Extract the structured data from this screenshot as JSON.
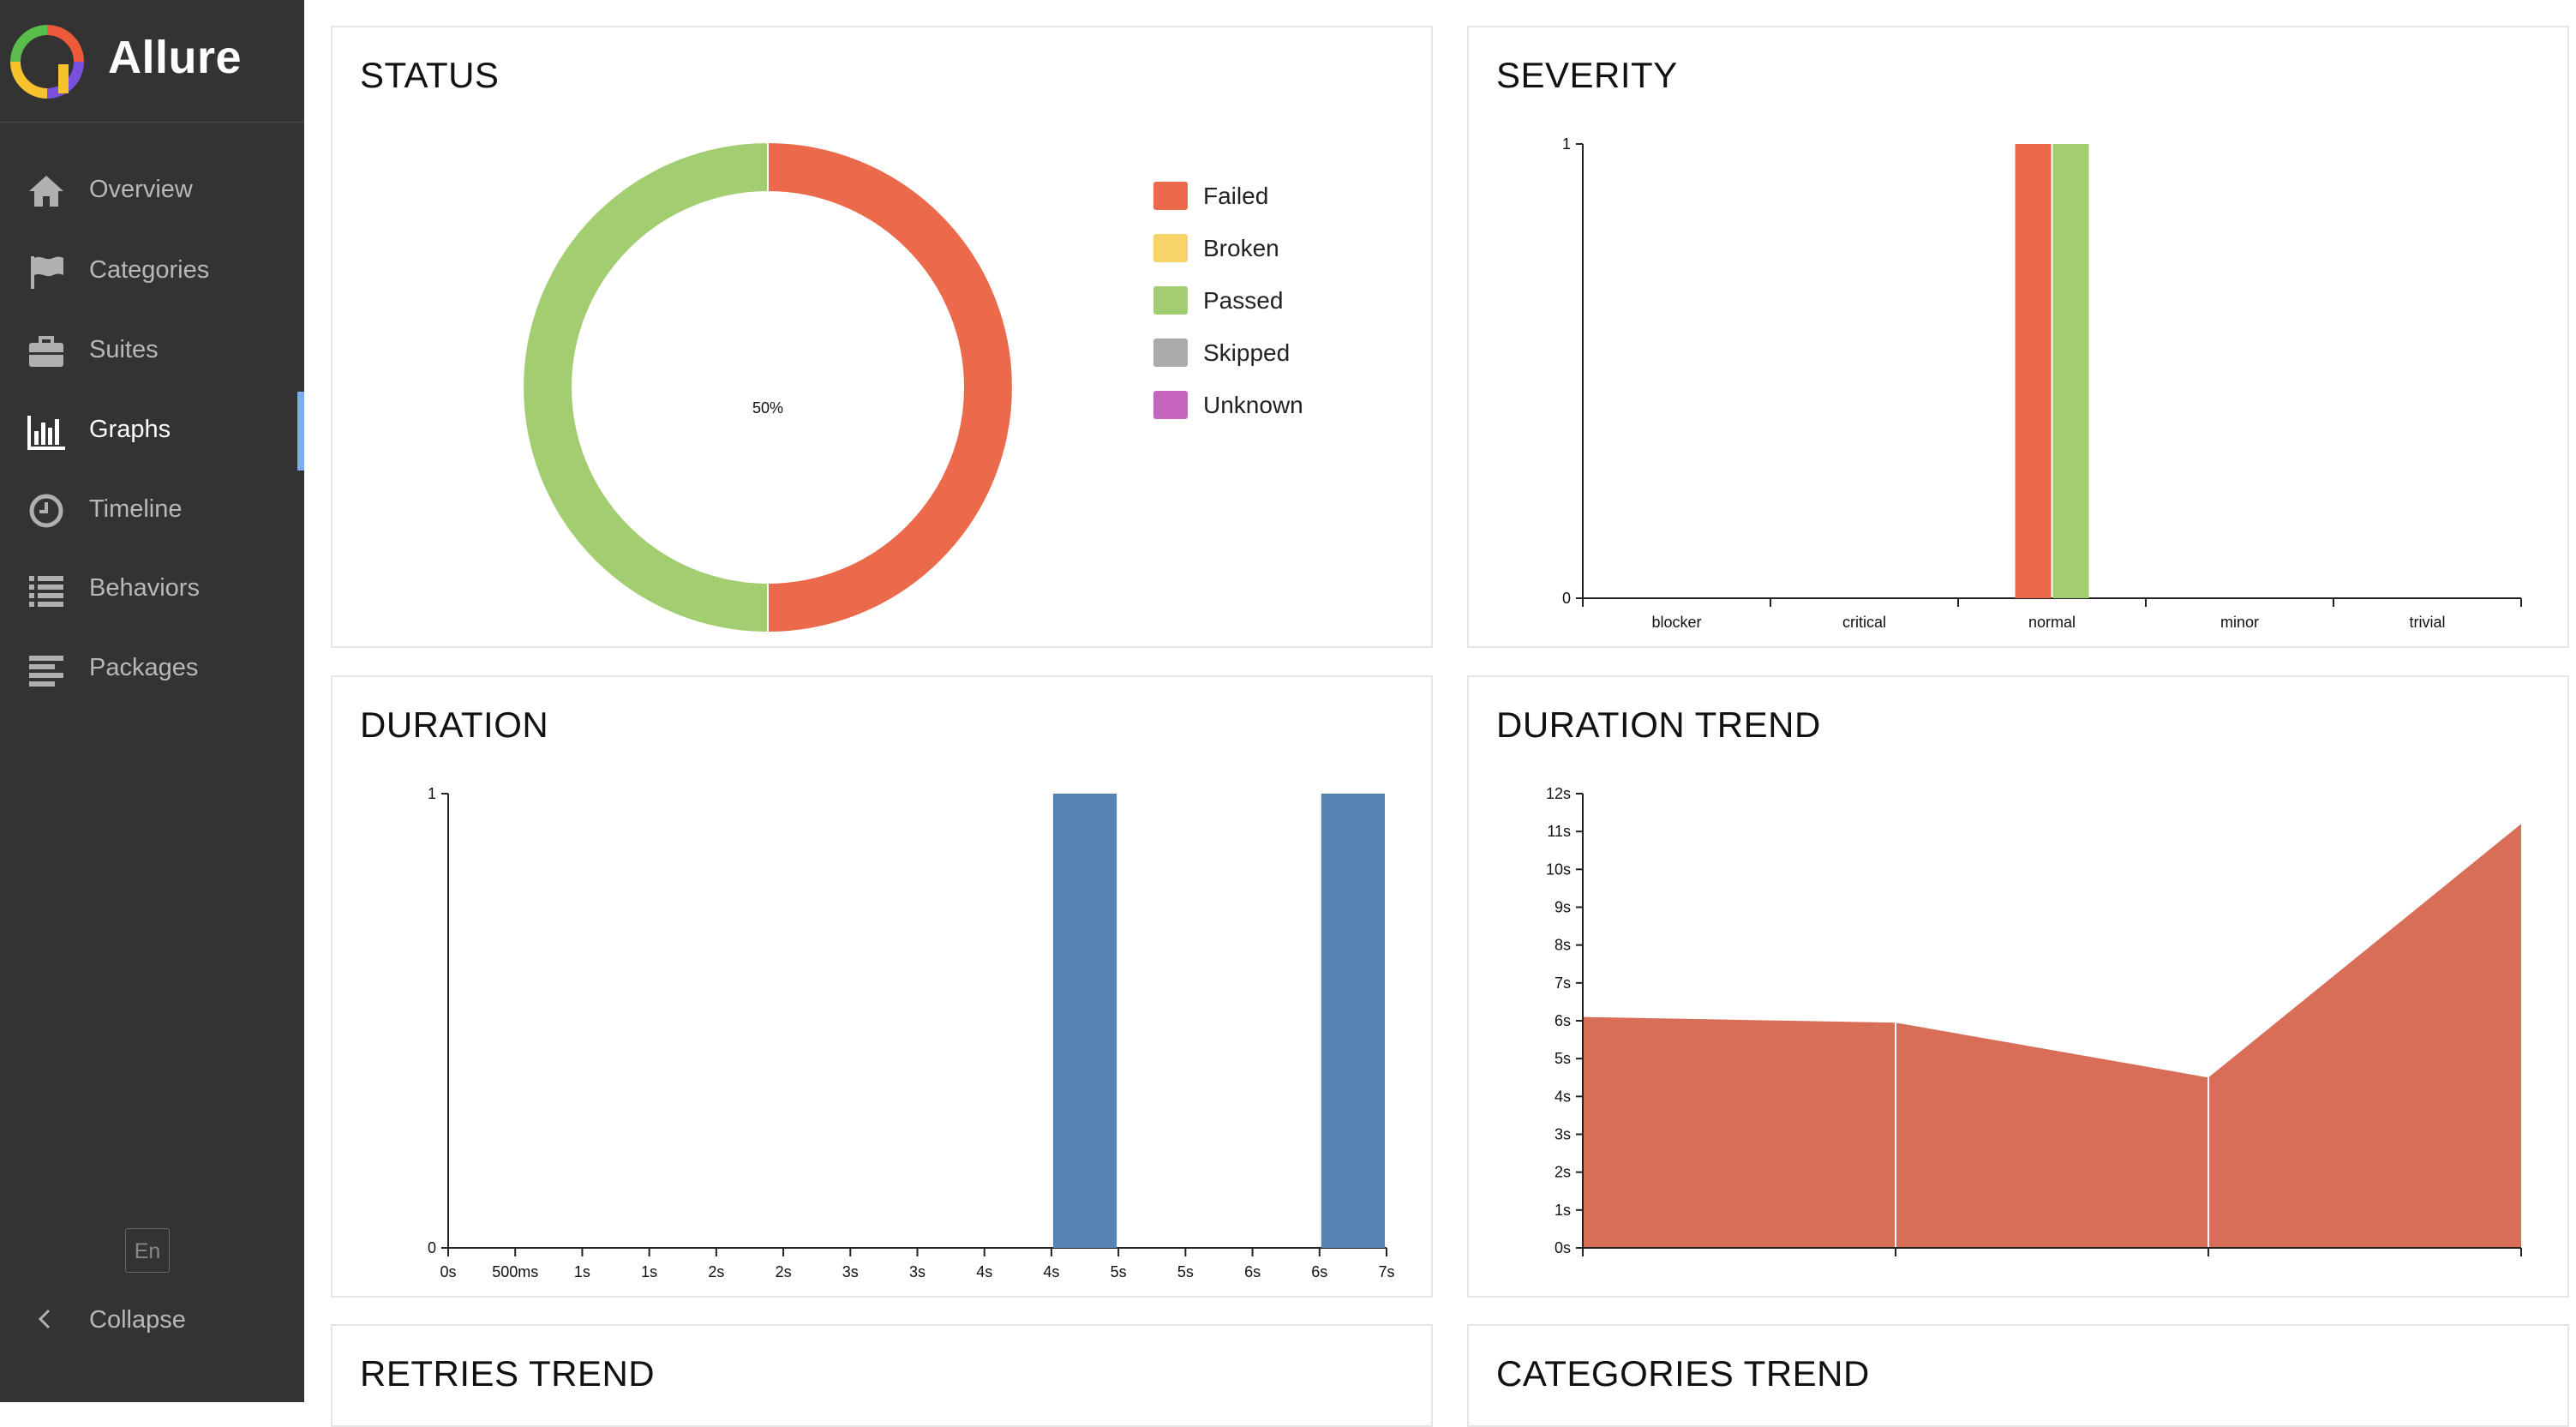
{
  "app": {
    "name": "Allure",
    "lang": "En",
    "collapse_label": "Collapse"
  },
  "sidebar": {
    "items": [
      {
        "label": "Overview",
        "icon": "home-icon"
      },
      {
        "label": "Categories",
        "icon": "flag-icon"
      },
      {
        "label": "Suites",
        "icon": "briefcase-icon"
      },
      {
        "label": "Graphs",
        "icon": "bar-chart-icon",
        "active": true
      },
      {
        "label": "Timeline",
        "icon": "clock-icon"
      },
      {
        "label": "Behaviors",
        "icon": "list-icon"
      },
      {
        "label": "Packages",
        "icon": "align-left-icon"
      }
    ]
  },
  "widgets": {
    "status": {
      "title": "STATUS",
      "center_label": "50%"
    },
    "severity": {
      "title": "SEVERITY"
    },
    "duration": {
      "title": "DURATION"
    },
    "duration_trend": {
      "title": "DURATION TREND"
    },
    "retries_trend": {
      "title": "RETRIES TREND"
    },
    "categories_trend": {
      "title": "CATEGORIES TREND"
    }
  },
  "colors": {
    "failed": "#ec6a4c",
    "broken": "#f8d468",
    "passed": "#a2cd70",
    "skipped": "#aaaaaa",
    "unknown": "#c466bd",
    "duration_bar": "#5583b3",
    "trend_area": "#d96e58"
  },
  "chart_data": [
    {
      "id": "status",
      "type": "pie",
      "slices": [
        {
          "name": "Failed",
          "value": 1
        },
        {
          "name": "Passed",
          "value": 1
        }
      ],
      "legend": [
        "Failed",
        "Broken",
        "Passed",
        "Skipped",
        "Unknown"
      ],
      "legend_position": "right",
      "center_label": "50%"
    },
    {
      "id": "severity",
      "type": "bar",
      "categories": [
        "blocker",
        "critical",
        "normal",
        "minor",
        "trivial"
      ],
      "series": [
        {
          "status": "failed",
          "values": [
            0,
            0,
            1,
            0,
            0
          ]
        },
        {
          "status": "passed",
          "values": [
            0,
            0,
            1,
            0,
            0
          ]
        }
      ],
      "yticks": [
        "0",
        "1"
      ],
      "ylim": [
        0,
        1
      ]
    },
    {
      "id": "duration",
      "type": "bar",
      "x_ticks": [
        "0s",
        "500ms",
        "1s",
        "1s",
        "2s",
        "2s",
        "3s",
        "3s",
        "4s",
        "4s",
        "5s",
        "5s",
        "6s",
        "6s",
        "7s"
      ],
      "bars": [
        {
          "from_tick": 9,
          "to_tick": 10,
          "value": 1
        },
        {
          "from_tick": 13,
          "to_tick": 14,
          "value": 1
        }
      ],
      "yticks": [
        "0",
        "1"
      ],
      "ylim": [
        0,
        1
      ]
    },
    {
      "id": "duration_trend",
      "type": "area",
      "values": [
        6.1,
        5.95,
        4.5,
        11.2
      ],
      "ylim": [
        0,
        12
      ],
      "yticks": [
        "0s",
        "1s",
        "2s",
        "3s",
        "4s",
        "5s",
        "6s",
        "7s",
        "8s",
        "9s",
        "10s",
        "11s",
        "12s"
      ]
    }
  ]
}
